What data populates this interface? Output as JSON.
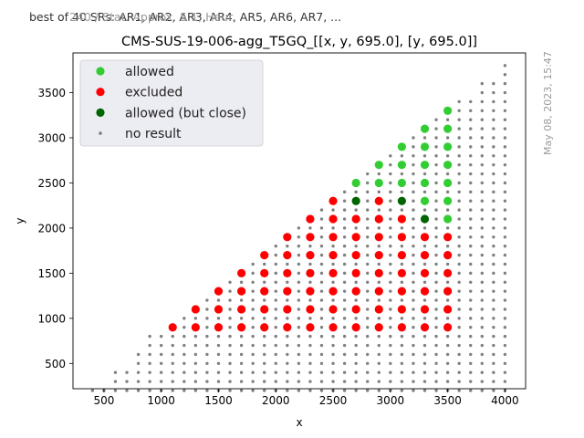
{
  "header": {
    "note": "best of 40 SRs: AR1, AR2, AR3, AR4, AR5, AR6, AR7, ...",
    "overlay_note": "240 / Stat. Approx. 5.1, Heur.",
    "timestamp": "May 08, 2023, 15:47"
  },
  "colors": {
    "allowed": "#32cd32",
    "excluded": "#ff0000",
    "close": "#006400",
    "noresult": "#808080",
    "legend_bg": "#eaeaf2"
  },
  "chart_data": {
    "type": "scatter",
    "title": "CMS-SUS-19-006-agg_T5GQ_[[x, y, 695.0], [y, 695.0]]",
    "xlabel": "x",
    "ylabel": "y",
    "xlim": [
      230,
      4180
    ],
    "ylim": [
      220,
      3940
    ],
    "xticks": [
      500,
      1000,
      1500,
      2000,
      2500,
      3000,
      3500,
      4000
    ],
    "yticks": [
      500,
      1000,
      1500,
      2000,
      2500,
      3000,
      3500
    ],
    "grid": false,
    "legend_position": "top-left",
    "legend": [
      {
        "label": "allowed",
        "key": "allowed"
      },
      {
        "label": "excluded",
        "key": "excluded"
      },
      {
        "label": "allowed (but close)",
        "key": "close"
      },
      {
        "label": "no result",
        "key": "noresult"
      }
    ],
    "series": [
      {
        "name": "allowed",
        "key": "allowed",
        "points": [
          [
            2700,
            2500
          ],
          [
            2900,
            2500
          ],
          [
            2900,
            2700
          ],
          [
            3100,
            2500
          ],
          [
            3100,
            2700
          ],
          [
            3100,
            2900
          ],
          [
            3300,
            2300
          ],
          [
            3300,
            2500
          ],
          [
            3300,
            2700
          ],
          [
            3300,
            2900
          ],
          [
            3300,
            3100
          ],
          [
            3500,
            2100
          ],
          [
            3500,
            2300
          ],
          [
            3500,
            2500
          ],
          [
            3500,
            2700
          ],
          [
            3500,
            2900
          ],
          [
            3500,
            3100
          ],
          [
            3500,
            3300
          ]
        ]
      },
      {
        "name": "excluded",
        "key": "excluded",
        "points": [
          [
            1100,
            900
          ],
          [
            1300,
            900
          ],
          [
            1300,
            1100
          ],
          [
            1500,
            900
          ],
          [
            1500,
            1100
          ],
          [
            1500,
            1300
          ],
          [
            1700,
            900
          ],
          [
            1700,
            1100
          ],
          [
            1700,
            1300
          ],
          [
            1700,
            1500
          ],
          [
            1900,
            900
          ],
          [
            1900,
            1100
          ],
          [
            1900,
            1300
          ],
          [
            1900,
            1500
          ],
          [
            1900,
            1700
          ],
          [
            2100,
            900
          ],
          [
            2100,
            1100
          ],
          [
            2100,
            1300
          ],
          [
            2100,
            1500
          ],
          [
            2100,
            1700
          ],
          [
            2100,
            1900
          ],
          [
            2300,
            900
          ],
          [
            2300,
            1100
          ],
          [
            2300,
            1300
          ],
          [
            2300,
            1500
          ],
          [
            2300,
            1700
          ],
          [
            2300,
            1900
          ],
          [
            2300,
            2100
          ],
          [
            2500,
            900
          ],
          [
            2500,
            1100
          ],
          [
            2500,
            1300
          ],
          [
            2500,
            1500
          ],
          [
            2500,
            1700
          ],
          [
            2500,
            1900
          ],
          [
            2500,
            2100
          ],
          [
            2500,
            2300
          ],
          [
            2700,
            900
          ],
          [
            2700,
            1100
          ],
          [
            2700,
            1300
          ],
          [
            2700,
            1500
          ],
          [
            2700,
            1700
          ],
          [
            2700,
            1900
          ],
          [
            2700,
            2100
          ],
          [
            2900,
            900
          ],
          [
            2900,
            1100
          ],
          [
            2900,
            1300
          ],
          [
            2900,
            1500
          ],
          [
            2900,
            1700
          ],
          [
            2900,
            1900
          ],
          [
            2900,
            2100
          ],
          [
            2900,
            2300
          ],
          [
            3100,
            900
          ],
          [
            3100,
            1100
          ],
          [
            3100,
            1300
          ],
          [
            3100,
            1500
          ],
          [
            3100,
            1700
          ],
          [
            3100,
            1900
          ],
          [
            3100,
            2100
          ],
          [
            3300,
            900
          ],
          [
            3300,
            1100
          ],
          [
            3300,
            1300
          ],
          [
            3300,
            1500
          ],
          [
            3300,
            1700
          ],
          [
            3300,
            1900
          ],
          [
            3500,
            900
          ],
          [
            3500,
            1100
          ],
          [
            3500,
            1300
          ],
          [
            3500,
            1500
          ],
          [
            3500,
            1700
          ],
          [
            3500,
            1900
          ]
        ]
      },
      {
        "name": "allowed (but close)",
        "key": "close",
        "points": [
          [
            2700,
            2300
          ],
          [
            3100,
            2300
          ],
          [
            3300,
            2100
          ]
        ]
      },
      {
        "name": "no result",
        "key": "noresult",
        "grid": {
          "x_step": 100,
          "y_step": 100,
          "x_max": 4000,
          "y_min": 200,
          "y_max": 3800,
          "y_max_minus_x": -200,
          "x_min_at": [
            [
              200,
              400
            ],
            [
              400,
              600
            ],
            [
              600,
              800
            ],
            [
              800,
              900
            ]
          ],
          "edge_threshold": 3300,
          "edge_y_step": 200
        }
      }
    ]
  }
}
